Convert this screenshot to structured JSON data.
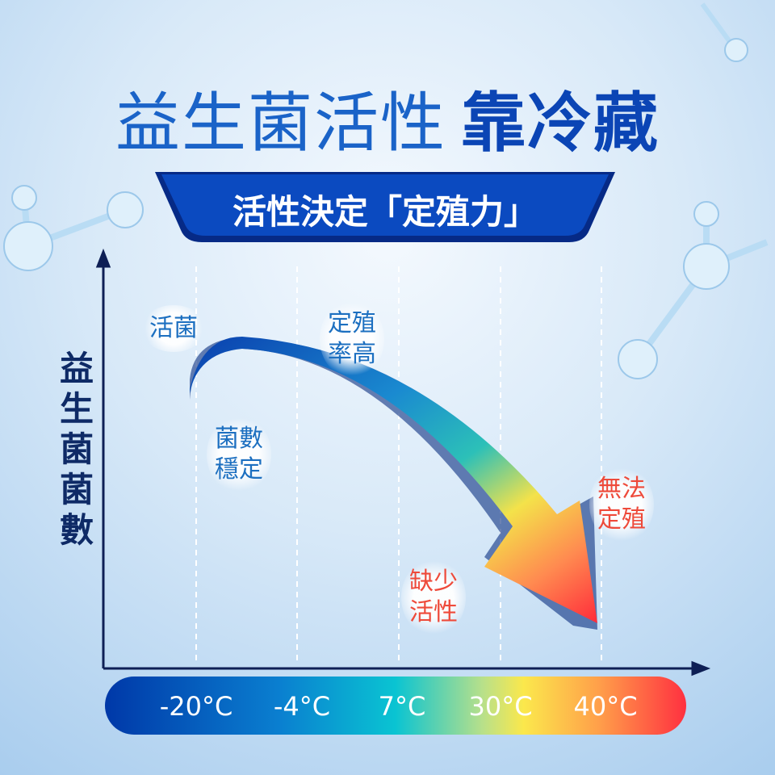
{
  "title": {
    "light": "益生菌活性",
    "bold": "靠冷藏"
  },
  "banner": {
    "text": "活性決定「定殖力」"
  },
  "y_axis_label": "益生菌菌數",
  "labels": {
    "live": "活菌",
    "stable": [
      "菌數",
      "穩定"
    ],
    "high_colonization": [
      "定殖",
      "率高"
    ],
    "low_activity": [
      "缺少",
      "活性"
    ],
    "no_colonization": [
      "無法",
      "定殖"
    ]
  },
  "temperatures": [
    "-20°C",
    "-4°C",
    "7°C",
    "30°C",
    "40°C"
  ],
  "colors": {
    "title_blue": "#1a63c8",
    "banner_blue": "#0b45b5",
    "axis": "#0e1f55",
    "warm_label": "#ee4a3a",
    "cool_label": "#1c6fc0"
  }
}
